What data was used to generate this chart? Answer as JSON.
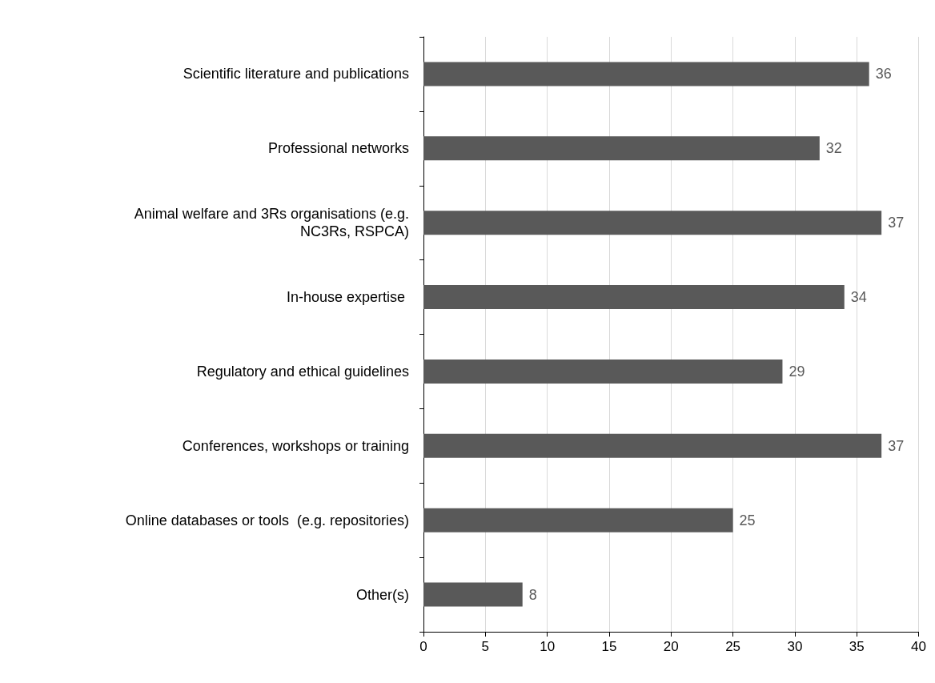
{
  "chart_data": {
    "type": "bar",
    "orientation": "horizontal",
    "categories": [
      "Scientific literature and publications",
      "Professional networks",
      "Animal welfare and 3Rs organisations (e.g.\nNC3Rs, RSPCA)",
      "In-house expertise ",
      "Regulatory and ethical guidelines",
      "Conferences, workshops or training",
      "Online databases or tools  (e.g. repositories)",
      "Other(s)"
    ],
    "values": [
      36,
      32,
      37,
      34,
      29,
      37,
      25,
      8
    ],
    "color": "#595959",
    "data_labels": true,
    "xlim": [
      0,
      40
    ],
    "xticks": [
      0,
      5,
      10,
      15,
      20,
      25,
      30,
      35,
      40
    ],
    "grid": "x"
  }
}
